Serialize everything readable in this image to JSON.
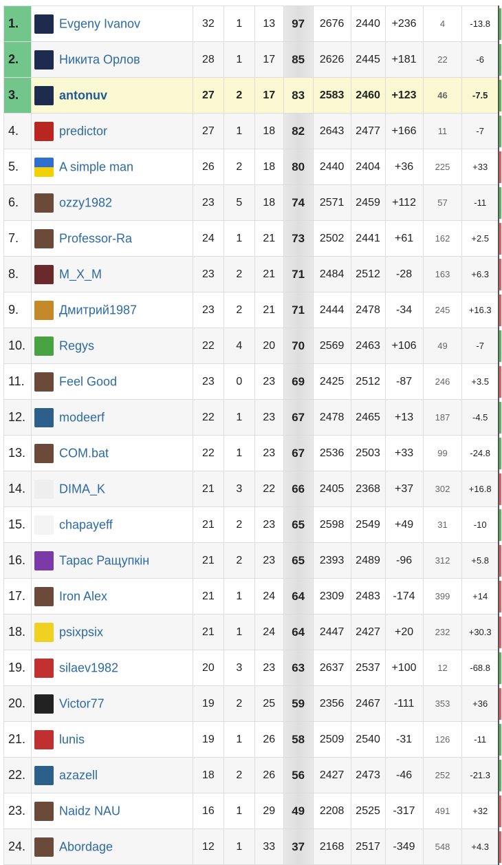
{
  "colors": {
    "top_rank_bg": "#72c68b",
    "highlight_row": "#fbf9d2",
    "name_link": "#2e6aa3",
    "positive": "#3e7a2c",
    "negative": "#b44040"
  },
  "rows": [
    {
      "rank": "1.",
      "name": "Evgeny Ivanov",
      "avatar": "jersey-25-icon",
      "w": "32",
      "d": "1",
      "l": "13",
      "pts": "97",
      "r1": "2676",
      "r2": "2440",
      "diff": "+236",
      "games": "4",
      "chg": "-13.8"
    },
    {
      "rank": "2.",
      "name": "Никита Орлов",
      "avatar": "jersey-43-icon",
      "w": "28",
      "d": "1",
      "l": "17",
      "pts": "85",
      "r1": "2626",
      "r2": "2445",
      "diff": "+181",
      "games": "22",
      "chg": "-6"
    },
    {
      "rank": "3.",
      "name": "antonuv",
      "avatar": "jersey-11-icon",
      "w": "27",
      "d": "2",
      "l": "17",
      "pts": "83",
      "r1": "2583",
      "r2": "2460",
      "diff": "+123",
      "games": "46",
      "chg": "-7.5",
      "highlight": true
    },
    {
      "rank": "4.",
      "name": "predictor",
      "avatar": "number-10-icon",
      "w": "27",
      "d": "1",
      "l": "18",
      "pts": "82",
      "r1": "2643",
      "r2": "2477",
      "diff": "+166",
      "games": "11",
      "chg": "-7"
    },
    {
      "rank": "5.",
      "name": "A simple man",
      "avatar": "ukraine-flag-icon",
      "w": "26",
      "d": "2",
      "l": "18",
      "pts": "80",
      "r1": "2440",
      "r2": "2404",
      "diff": "+36",
      "games": "225",
      "chg": "+33"
    },
    {
      "rank": "6.",
      "name": "ozzy1982",
      "avatar": "photo-avatar-icon",
      "w": "23",
      "d": "5",
      "l": "18",
      "pts": "74",
      "r1": "2571",
      "r2": "2459",
      "diff": "+112",
      "games": "57",
      "chg": "-11"
    },
    {
      "rank": "7.",
      "name": "Professor-Ra",
      "avatar": "photo-avatar-icon",
      "w": "24",
      "d": "1",
      "l": "21",
      "pts": "73",
      "r1": "2502",
      "r2": "2441",
      "diff": "+61",
      "games": "162",
      "chg": "+2.5"
    },
    {
      "rank": "8.",
      "name": "M_X_M",
      "avatar": "jersey-icon",
      "w": "23",
      "d": "2",
      "l": "21",
      "pts": "71",
      "r1": "2484",
      "r2": "2512",
      "diff": "-28",
      "games": "163",
      "chg": "+6.3"
    },
    {
      "rank": "9.",
      "name": "Дмитрий1987",
      "avatar": "cat-icon",
      "w": "23",
      "d": "2",
      "l": "21",
      "pts": "71",
      "r1": "2444",
      "r2": "2478",
      "diff": "-34",
      "games": "245",
      "chg": "+16.3"
    },
    {
      "rank": "10.",
      "name": "Regys",
      "avatar": "clover-icon",
      "w": "22",
      "d": "4",
      "l": "20",
      "pts": "70",
      "r1": "2569",
      "r2": "2463",
      "diff": "+106",
      "games": "49",
      "chg": "-7"
    },
    {
      "rank": "11.",
      "name": "Feel Good",
      "avatar": "photo-avatar-icon",
      "w": "23",
      "d": "0",
      "l": "23",
      "pts": "69",
      "r1": "2425",
      "r2": "2512",
      "diff": "-87",
      "games": "246",
      "chg": "+3.5"
    },
    {
      "rank": "12.",
      "name": "modeerf",
      "avatar": "jersey-13-icon",
      "w": "22",
      "d": "1",
      "l": "23",
      "pts": "67",
      "r1": "2478",
      "r2": "2465",
      "diff": "+13",
      "games": "187",
      "chg": "-4.5"
    },
    {
      "rank": "13.",
      "name": "COM.bat",
      "avatar": "photo-avatar-icon",
      "w": "22",
      "d": "1",
      "l": "23",
      "pts": "67",
      "r1": "2536",
      "r2": "2503",
      "diff": "+33",
      "games": "99",
      "chg": "-24.8"
    },
    {
      "rank": "14.",
      "name": "DIMA_K",
      "avatar": "default-user-icon",
      "w": "21",
      "d": "3",
      "l": "22",
      "pts": "66",
      "r1": "2405",
      "r2": "2368",
      "diff": "+37",
      "games": "302",
      "chg": "+16.8"
    },
    {
      "rank": "15.",
      "name": "chapayeff",
      "avatar": "ajax-logo-icon",
      "w": "21",
      "d": "2",
      "l": "23",
      "pts": "65",
      "r1": "2598",
      "r2": "2549",
      "diff": "+49",
      "games": "31",
      "chg": "-10"
    },
    {
      "rank": "16.",
      "name": "Тарас Ращупкін",
      "avatar": "jersey-13-purple-icon",
      "w": "21",
      "d": "2",
      "l": "23",
      "pts": "65",
      "r1": "2393",
      "r2": "2489",
      "diff": "-96",
      "games": "312",
      "chg": "+5.8"
    },
    {
      "rank": "17.",
      "name": "Iron Alex",
      "avatar": "photo-avatar-icon",
      "w": "21",
      "d": "1",
      "l": "24",
      "pts": "64",
      "r1": "2309",
      "r2": "2483",
      "diff": "-174",
      "games": "399",
      "chg": "+14"
    },
    {
      "rank": "18.",
      "name": "psixpsix",
      "avatar": "jersey-yellow-icon",
      "w": "21",
      "d": "1",
      "l": "24",
      "pts": "64",
      "r1": "2447",
      "r2": "2427",
      "diff": "+20",
      "games": "232",
      "chg": "+30.3"
    },
    {
      "rank": "19.",
      "name": "silaev1982",
      "avatar": "jersey-red-icon",
      "w": "20",
      "d": "3",
      "l": "23",
      "pts": "63",
      "r1": "2637",
      "r2": "2537",
      "diff": "+100",
      "games": "12",
      "chg": "-68.8"
    },
    {
      "rank": "20.",
      "name": "Victor77",
      "avatar": "number-77-icon",
      "w": "19",
      "d": "2",
      "l": "25",
      "pts": "59",
      "r1": "2356",
      "r2": "2467",
      "diff": "-111",
      "games": "353",
      "chg": "+36"
    },
    {
      "rank": "21.",
      "name": "lunis",
      "avatar": "player-icon",
      "w": "19",
      "d": "1",
      "l": "26",
      "pts": "58",
      "r1": "2509",
      "r2": "2540",
      "diff": "-31",
      "games": "126",
      "chg": "-11"
    },
    {
      "rank": "22.",
      "name": "azazell",
      "avatar": "jersey-12-icon",
      "w": "18",
      "d": "2",
      "l": "26",
      "pts": "56",
      "r1": "2427",
      "r2": "2473",
      "diff": "-46",
      "games": "252",
      "chg": "-21.3"
    },
    {
      "rank": "23.",
      "name": "Naidz NAU",
      "avatar": "photo-avatar-icon",
      "w": "16",
      "d": "1",
      "l": "29",
      "pts": "49",
      "r1": "2208",
      "r2": "2525",
      "diff": "-317",
      "games": "491",
      "chg": "+32"
    },
    {
      "rank": "24.",
      "name": "Abordage",
      "avatar": "photo-avatar-icon",
      "w": "12",
      "d": "1",
      "l": "33",
      "pts": "37",
      "r1": "2168",
      "r2": "2517",
      "diff": "-349",
      "games": "548",
      "chg": "+4.3"
    }
  ]
}
